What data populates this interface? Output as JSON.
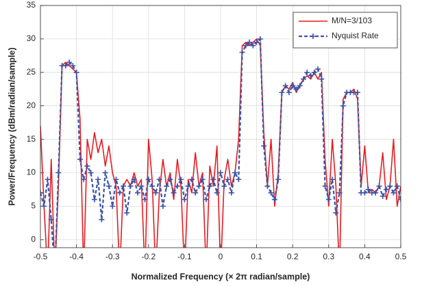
{
  "chart_data": {
    "type": "line",
    "xlabel": "Normalized Frequency (× 2π radian/sample)",
    "ylabel": "Power/Frequency (dBm/radian/sample)",
    "x": [
      -0.5,
      -0.49,
      -0.48,
      -0.47,
      -0.46,
      -0.45,
      -0.44,
      -0.43,
      -0.42,
      -0.41,
      -0.4,
      -0.39,
      -0.38,
      -0.37,
      -0.36,
      -0.35,
      -0.34,
      -0.33,
      -0.32,
      -0.31,
      -0.3,
      -0.29,
      -0.28,
      -0.27,
      -0.26,
      -0.25,
      -0.24,
      -0.23,
      -0.22,
      -0.21,
      -0.2,
      -0.19,
      -0.18,
      -0.17,
      -0.16,
      -0.15,
      -0.14,
      -0.13,
      -0.12,
      -0.11,
      -0.1,
      -0.09,
      -0.08,
      -0.07,
      -0.06,
      -0.05,
      -0.04,
      -0.03,
      -0.02,
      -0.01,
      0,
      0.01,
      0.02,
      0.03,
      0.04,
      0.05,
      0.06,
      0.07,
      0.08,
      0.09,
      0.1,
      0.11,
      0.12,
      0.13,
      0.14,
      0.15,
      0.16,
      0.17,
      0.18,
      0.19,
      0.2,
      0.21,
      0.22,
      0.23,
      0.24,
      0.25,
      0.26,
      0.27,
      0.28,
      0.29,
      0.3,
      0.31,
      0.32,
      0.33,
      0.34,
      0.35,
      0.36,
      0.37,
      0.38,
      0.39,
      0.4,
      0.41,
      0.42,
      0.43,
      0.44,
      0.45,
      0.46,
      0.47,
      0.48,
      0.49,
      0.5
    ],
    "series": [
      {
        "name": "M/N=3/103",
        "color": "#e8191e",
        "dashed": false,
        "marker": false,
        "values": [
          17,
          5,
          -5,
          12,
          -5,
          8,
          26,
          26.5,
          26,
          25.5,
          25,
          18,
          -5,
          15,
          12,
          16,
          13,
          15,
          11,
          14,
          10,
          8,
          -5,
          8,
          9,
          8,
          10,
          8,
          9,
          -5,
          15,
          9,
          -5,
          7,
          12,
          8,
          10,
          6,
          12,
          8,
          -5,
          9,
          7,
          13,
          8,
          10,
          -5,
          11,
          8,
          14,
          -5,
          9,
          12,
          8,
          10,
          15,
          29,
          29.5,
          29,
          29.5,
          30,
          29,
          16,
          8,
          15,
          5,
          10,
          22,
          23,
          22.5,
          23.5,
          22,
          23,
          24,
          24.5,
          24,
          25,
          24,
          25,
          12,
          5,
          15,
          8,
          -5,
          21,
          22,
          22,
          22.5,
          21,
          8,
          14,
          7,
          7.5,
          7,
          8,
          13,
          6,
          8,
          15,
          5,
          8
        ]
      },
      {
        "name": "Nyquist Rate",
        "color": "#3a52a8",
        "dashed": true,
        "marker": true,
        "values": [
          7,
          5,
          9,
          3,
          -5,
          10,
          26,
          26,
          26.5,
          26,
          25,
          12,
          9,
          11,
          10,
          6,
          9,
          3,
          10,
          8,
          5,
          9,
          7,
          8,
          4,
          8,
          9,
          7,
          8,
          6,
          9,
          8,
          7,
          9,
          5,
          8,
          9,
          7,
          8,
          9,
          6,
          8,
          9,
          7,
          8,
          9,
          6,
          8,
          9,
          7,
          10,
          8,
          9,
          7,
          10,
          9,
          28,
          29,
          29.5,
          29,
          29.5,
          30,
          14,
          8,
          7,
          6,
          9,
          22,
          23,
          22,
          23,
          22.5,
          23,
          24,
          25,
          24.5,
          25,
          25.5,
          24,
          8,
          6,
          9,
          4,
          7,
          20,
          22,
          22,
          22,
          22,
          7,
          7,
          7.5,
          7,
          7,
          8,
          6.5,
          7.5,
          8,
          7,
          8,
          6
        ]
      }
    ],
    "xlim": [
      -0.5,
      0.5
    ],
    "ylim": [
      -1.2,
      35
    ],
    "xticks": [
      -0.5,
      -0.4,
      -0.3,
      -0.2,
      -0.1,
      0,
      0.1,
      0.2,
      0.3,
      0.4,
      0.5
    ],
    "yticks": [
      0,
      5,
      10,
      15,
      20,
      25,
      30,
      35
    ],
    "grid": true,
    "legend": "northeast"
  }
}
